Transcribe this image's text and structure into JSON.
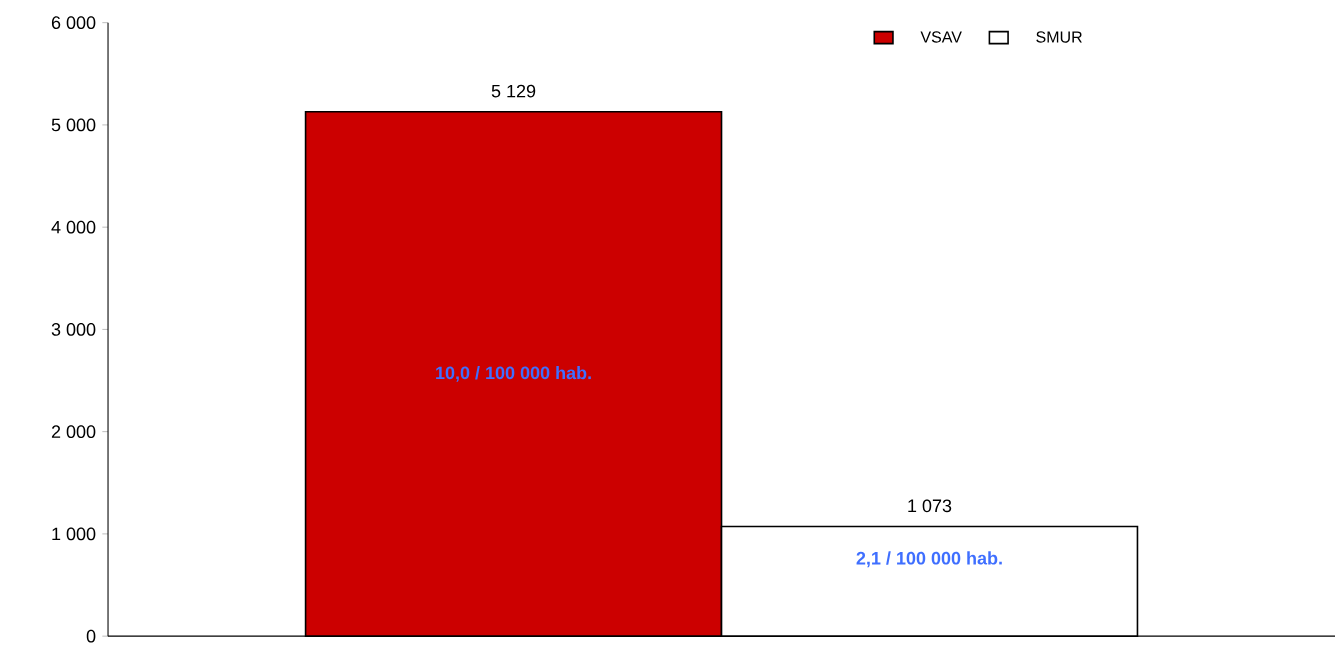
{
  "chart_data": {
    "type": "bar",
    "categories": [
      null
    ],
    "series": [
      {
        "name": "VSAV",
        "color": "#cc0000",
        "values": [
          5129
        ],
        "value_labels": [
          "5 129"
        ]
      },
      {
        "name": "SMUR",
        "color": "#ffffff",
        "values": [
          1073
        ],
        "value_labels": [
          "1 073"
        ]
      }
    ],
    "ylim": [
      0,
      6000
    ],
    "yticks": [
      0,
      {
        "value": 1000,
        "label": "1 000"
      },
      {
        "value": 2000,
        "label": "2 000"
      },
      {
        "value": 3000,
        "label": "3 000"
      },
      {
        "value": 4000,
        "label": "4 000"
      },
      {
        "value": 5000,
        "label": "5 000"
      },
      {
        "value": 6000,
        "label": "6 000"
      }
    ],
    "annotations": [
      "10,0 / 100 000 hab.",
      "2,1 / 100 000 hab."
    ],
    "grid": false,
    "legend": "top right"
  }
}
